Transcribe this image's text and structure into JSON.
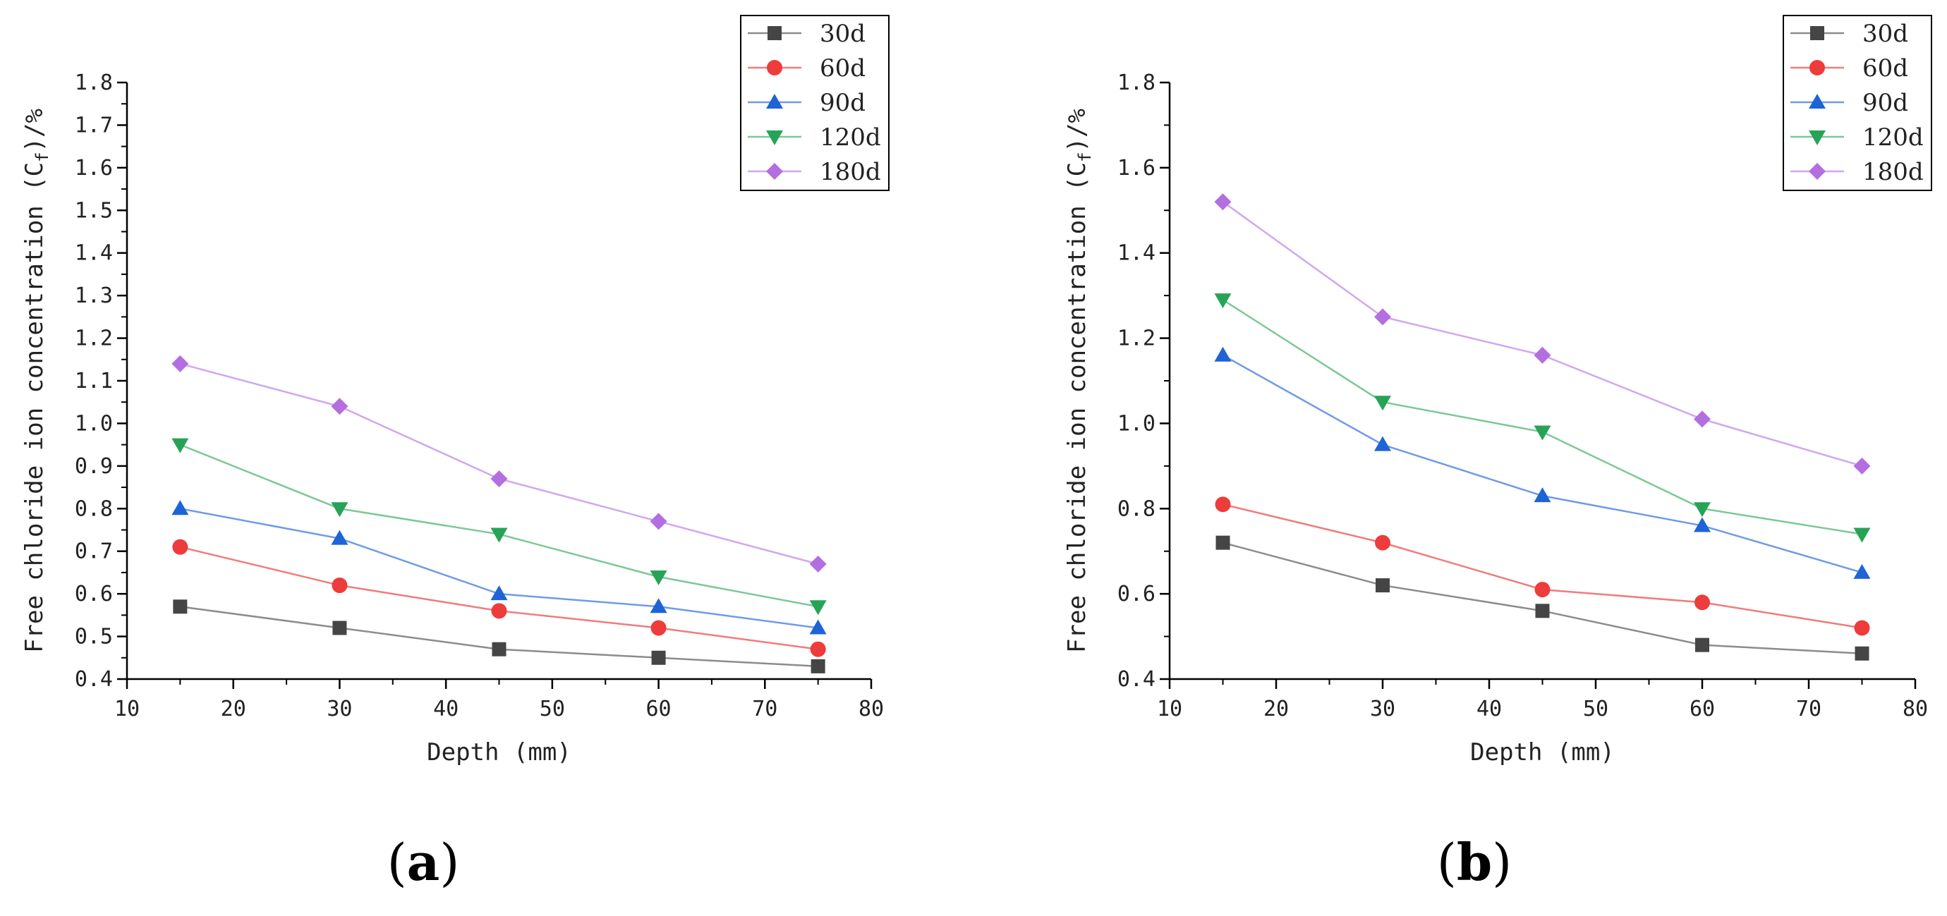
{
  "colors": {
    "30d": "#454545",
    "60d": "#ee3b3b",
    "90d": "#1e64d6",
    "120d": "#27a356",
    "180d": "#b36ee0",
    "line_30d": "#8c8c8c",
    "line_60d": "#f07c7c",
    "line_90d": "#6f9be6",
    "line_120d": "#7cc896",
    "line_180d": "#d0a7ef"
  },
  "chart_data": [
    {
      "type": "line",
      "panel_label": "(a)",
      "xlabel": "Depth (mm)",
      "ylabel": "Free chloride ion concentration (C_f)/%",
      "ylabel_main": "Free chloride ion concentration (C",
      "ylabel_sub": "f",
      "ylabel_end": ")/%",
      "xlim": [
        10,
        80
      ],
      "ylim": [
        0.4,
        1.8
      ],
      "xticks": [
        "10",
        "20",
        "30",
        "40",
        "50",
        "60",
        "70",
        "80"
      ],
      "yticks": [
        "0.4",
        "0.5",
        "0.6",
        "0.7",
        "0.8",
        "0.9",
        "1.0",
        "1.1",
        "1.2",
        "1.3",
        "1.4",
        "1.5",
        "1.6",
        "1.7",
        "1.8"
      ],
      "legend_position": "top-right",
      "x": [
        15,
        30,
        45,
        60,
        75
      ],
      "series": [
        {
          "name": "30d",
          "marker": "square",
          "values": [
            0.57,
            0.52,
            0.47,
            0.45,
            0.43
          ]
        },
        {
          "name": "60d",
          "marker": "circle",
          "values": [
            0.71,
            0.62,
            0.56,
            0.52,
            0.47
          ]
        },
        {
          "name": "90d",
          "marker": "triangle-up",
          "values": [
            0.8,
            0.73,
            0.6,
            0.57,
            0.52
          ]
        },
        {
          "name": "120d",
          "marker": "triangle-down",
          "values": [
            0.95,
            0.8,
            0.74,
            0.64,
            0.57
          ]
        },
        {
          "name": "180d",
          "marker": "diamond",
          "values": [
            1.14,
            1.04,
            0.87,
            0.77,
            0.67
          ]
        }
      ]
    },
    {
      "type": "line",
      "panel_label": "(b)",
      "xlabel": "Depth (mm)",
      "ylabel": "Free chloride ion concentration (C_f)/%",
      "ylabel_main": "Free chloride ion concentration (C",
      "ylabel_sub": "f",
      "ylabel_end": ")/%",
      "xlim": [
        10,
        80
      ],
      "ylim": [
        0.4,
        1.8
      ],
      "xticks": [
        "10",
        "20",
        "30",
        "40",
        "50",
        "60",
        "70",
        "80"
      ],
      "yticks": [
        "0.4",
        "0.6",
        "0.8",
        "1.0",
        "1.2",
        "1.4",
        "1.6",
        "1.8"
      ],
      "legend_position": "top-right",
      "x": [
        15,
        30,
        45,
        60,
        75
      ],
      "series": [
        {
          "name": "30d",
          "marker": "square",
          "values": [
            0.72,
            0.62,
            0.56,
            0.48,
            0.46
          ]
        },
        {
          "name": "60d",
          "marker": "circle",
          "values": [
            0.81,
            0.72,
            0.61,
            0.58,
            0.52
          ]
        },
        {
          "name": "90d",
          "marker": "triangle-up",
          "values": [
            1.16,
            0.95,
            0.83,
            0.76,
            0.65
          ]
        },
        {
          "name": "120d",
          "marker": "triangle-down",
          "values": [
            1.29,
            1.05,
            0.98,
            0.8,
            0.74
          ]
        },
        {
          "name": "180d",
          "marker": "diamond",
          "values": [
            1.52,
            1.25,
            1.16,
            1.01,
            0.9
          ]
        }
      ]
    }
  ]
}
